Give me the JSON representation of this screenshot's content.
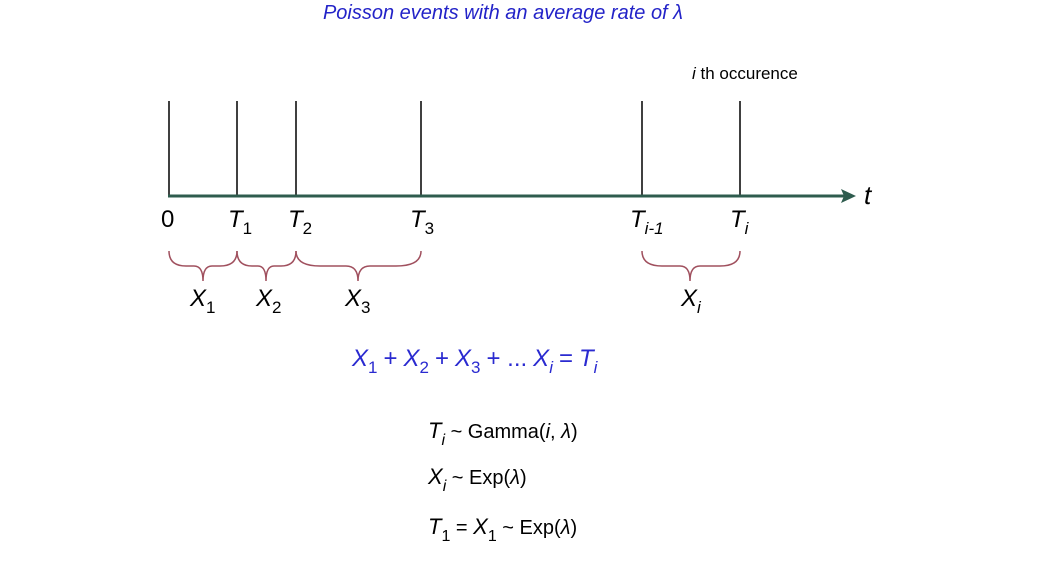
{
  "title": "Poisson events with an average rate of λ",
  "occurrence_label": {
    "i": "i",
    "rest": " th occurence"
  },
  "axis_label": "t",
  "origin_label": "0",
  "time_labels": [
    {
      "base": "T",
      "sub": "1"
    },
    {
      "base": "T",
      "sub": "2"
    },
    {
      "base": "T",
      "sub": "3"
    },
    {
      "base": "T",
      "sub": "i-1"
    },
    {
      "base": "T",
      "sub": "i"
    }
  ],
  "interval_labels": [
    {
      "base": "X",
      "sub": "1"
    },
    {
      "base": "X",
      "sub": "2"
    },
    {
      "base": "X",
      "sub": "3"
    },
    {
      "base": "X",
      "sub": "i"
    }
  ],
  "sum_equation": {
    "terms": [
      {
        "base": "X",
        "sub": "1"
      },
      {
        "base": "X",
        "sub": "2"
      },
      {
        "base": "X",
        "sub": "3"
      }
    ],
    "plus": "+",
    "ellipsis": "+ ...",
    "last_term": {
      "base": "X",
      "sub": "i"
    },
    "equals": "=",
    "result": {
      "base": "T",
      "sub": "i"
    }
  },
  "relations": [
    {
      "lhs_base": "T",
      "lhs_sub": "i",
      "rhs_pre": " ~ Gamma(",
      "rhs_i": "i",
      "rhs_mid": ", ",
      "rhs_lambda": "λ",
      "rhs_post": ")"
    },
    {
      "lhs_base": "X",
      "lhs_sub": "i",
      "rhs_pre": " ~ Exp(",
      "rhs_lambda": "λ",
      "rhs_post": ")"
    },
    {
      "lhs_base": "T",
      "lhs_sub": "1",
      "mid": " = ",
      "mid_base": "X",
      "mid_sub": "1",
      "rhs_pre": " ~ Exp(",
      "rhs_lambda": "λ",
      "rhs_post": ")"
    }
  ],
  "colors": {
    "axis": "#2e5c4e",
    "brace": "#a0505e",
    "title": "#2323c8",
    "equation": "#2a2ad0"
  }
}
